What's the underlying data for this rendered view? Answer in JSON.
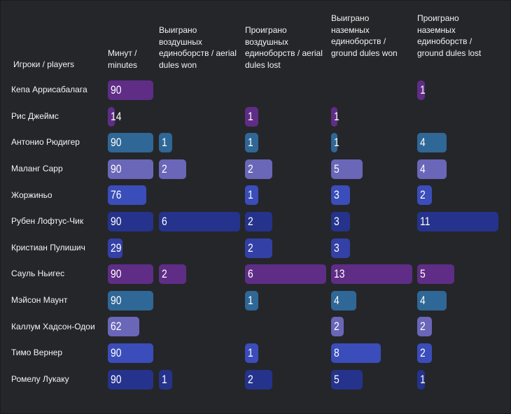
{
  "chart_data": {
    "type": "table",
    "title": "",
    "columns": [
      {
        "key": "players",
        "label": "Игроки / players"
      },
      {
        "key": "minutes",
        "label": "Минут / minutes",
        "max": 90
      },
      {
        "key": "aerial_won",
        "label": "Выиграно воздушных единоборств / aerial dules won",
        "max": 6
      },
      {
        "key": "aerial_lost",
        "label": "Проиграно воздушных единоборств / aerial dules lost",
        "max": 6
      },
      {
        "key": "ground_won",
        "label": "Выиграно наземных единоборств / ground dules won",
        "max": 13
      },
      {
        "key": "ground_lost",
        "label": "Проиграно наземных единоборств / ground dules lost",
        "max": 11
      }
    ],
    "rows": [
      {
        "player": "Кепа Аррисабалага",
        "values": [
          90,
          null,
          null,
          null,
          1
        ],
        "colors": [
          "#5f2d86",
          null,
          null,
          null,
          "#5f2d86"
        ]
      },
      {
        "player": "Рис Джеймс",
        "values": [
          14,
          null,
          1,
          1,
          null
        ],
        "colors": [
          "#5f2d86",
          null,
          "#5f2d86",
          "#5f2d86",
          null
        ]
      },
      {
        "player": "Антонио Рюдигер",
        "values": [
          90,
          1,
          1,
          1,
          4
        ],
        "colors": [
          "#2f6796",
          "#2f6796",
          "#2f6796",
          "#2f6796",
          "#2f6796"
        ]
      },
      {
        "player": "Маланг Сарр",
        "values": [
          90,
          2,
          2,
          5,
          4
        ],
        "colors": [
          "#6a66b8",
          "#6a66b8",
          "#6a66b8",
          "#6a66b8",
          "#6a66b8"
        ]
      },
      {
        "player": "Жоржиньо",
        "values": [
          76,
          null,
          1,
          3,
          2
        ],
        "colors": [
          "#3a4dba",
          null,
          "#3a4dba",
          "#3a4dba",
          "#3a4dba"
        ]
      },
      {
        "player": "Рубен Лофтус-Чик",
        "values": [
          90,
          6,
          2,
          3,
          11
        ],
        "colors": [
          "#25338c",
          "#25338c",
          "#25338c",
          "#25338c",
          "#25338c"
        ]
      },
      {
        "player": "Кристиан Пулишич",
        "values": [
          29,
          null,
          2,
          3,
          null
        ],
        "colors": [
          "#3340a6",
          null,
          "#3340a6",
          "#3340a6",
          null
        ]
      },
      {
        "player": "Сауль Ньигес",
        "values": [
          90,
          2,
          6,
          13,
          5
        ],
        "colors": [
          "#5f2d86",
          "#5f2d86",
          "#5f2d86",
          "#5f2d86",
          "#5f2d86"
        ]
      },
      {
        "player": "Мэйсон Маунт",
        "values": [
          90,
          null,
          1,
          4,
          4
        ],
        "colors": [
          "#2f6796",
          null,
          "#2f6796",
          "#2f6796",
          "#2f6796"
        ]
      },
      {
        "player": "Каллум Хадсон-Одои",
        "values": [
          62,
          null,
          null,
          2,
          2
        ],
        "colors": [
          "#6a66b8",
          null,
          null,
          "#6a66b8",
          "#6a66b8"
        ]
      },
      {
        "player": "Тимо Вернер",
        "values": [
          90,
          null,
          1,
          8,
          2
        ],
        "colors": [
          "#3a4dba",
          null,
          "#3a4dba",
          "#3a4dba",
          "#3a4dba"
        ]
      },
      {
        "player": "Ромелу Лукаку",
        "values": [
          90,
          1,
          2,
          5,
          1
        ],
        "colors": [
          "#25338c",
          "#25338c",
          "#25338c",
          "#25338c",
          "#25338c"
        ]
      }
    ]
  }
}
